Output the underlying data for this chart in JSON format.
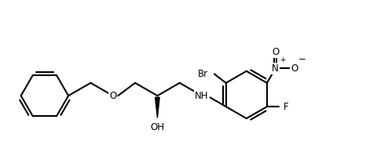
{
  "figsize": [
    4.66,
    1.94
  ],
  "dpi": 100,
  "bg_color": "#ffffff",
  "line_color": "#000000",
  "bond_lw": 1.5,
  "font_size": 8.5,
  "xlim": [
    -0.3,
    8.8
  ],
  "ylim": [
    -1.8,
    2.0
  ]
}
